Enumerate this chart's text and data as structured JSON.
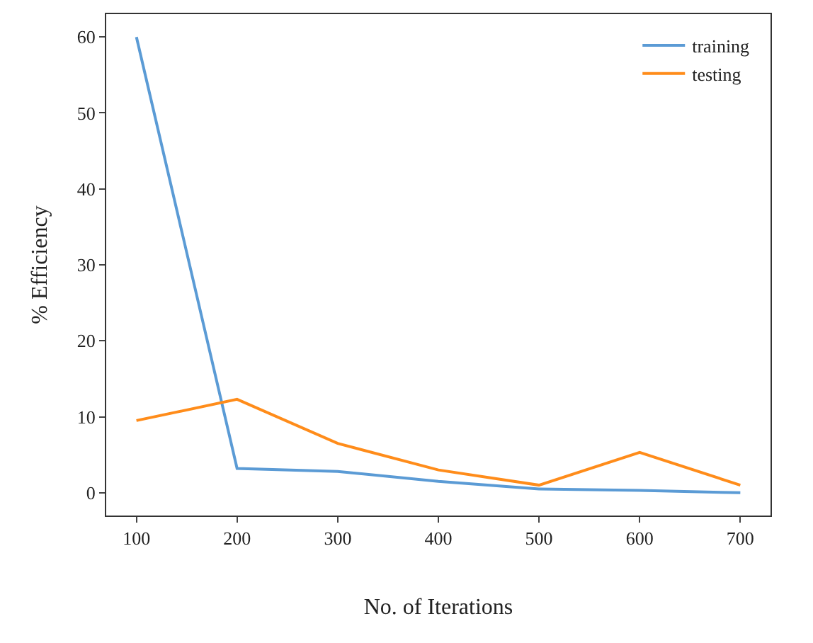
{
  "chart_data": {
    "type": "line",
    "xlabel": "No. of Iterations",
    "ylabel": "% Efficiency",
    "x": [
      100,
      200,
      300,
      400,
      500,
      600,
      700
    ],
    "series": [
      {
        "name": "training",
        "color": "#5b9bd5",
        "values": [
          60,
          3.2,
          2.8,
          1.5,
          0.5,
          0.3,
          0
        ]
      },
      {
        "name": "testing",
        "color": "#ff8c1a",
        "values": [
          9.5,
          12.3,
          6.5,
          3,
          1,
          5.3,
          1
        ]
      }
    ],
    "xlim": [
      70,
      730
    ],
    "xticks": [
      100,
      200,
      300,
      400,
      500,
      600,
      700
    ],
    "ylim": [
      -3,
      63
    ],
    "yticks": [
      0,
      10,
      20,
      30,
      40,
      50,
      60
    ],
    "grid": false,
    "legend": "top right",
    "marker": "none",
    "line_style": "solid"
  }
}
